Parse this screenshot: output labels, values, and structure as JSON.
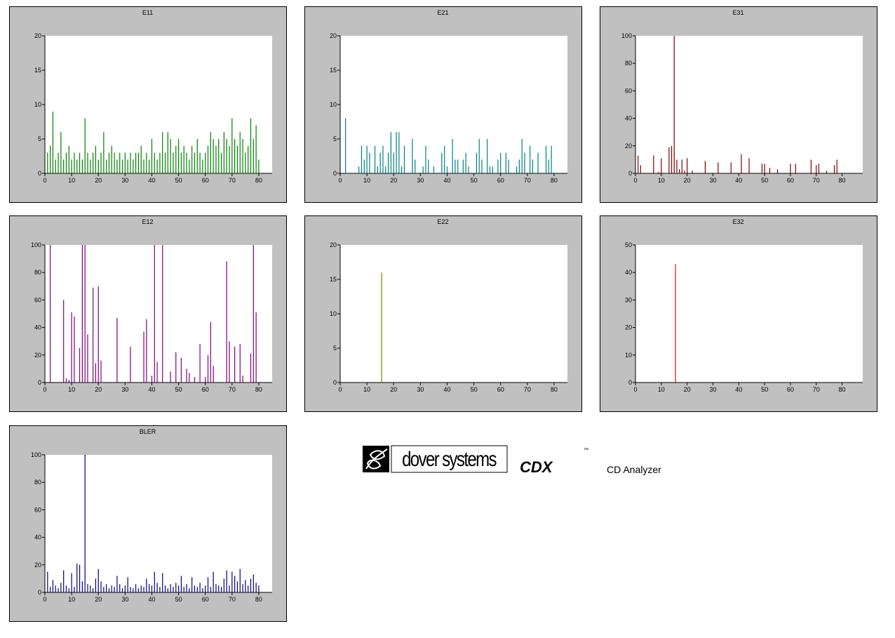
{
  "chart_data": [
    {
      "type": "bar",
      "title": "E11",
      "color": "#008000",
      "xlim": [
        0,
        85
      ],
      "ylim": [
        0,
        20
      ],
      "xticks": [
        0,
        10,
        20,
        30,
        40,
        50,
        60,
        70,
        80
      ],
      "yticks": [
        0,
        5,
        10,
        15,
        20
      ],
      "x": [
        1,
        2,
        3,
        4,
        5,
        6,
        7,
        8,
        9,
        10,
        11,
        12,
        13,
        14,
        15,
        16,
        17,
        18,
        19,
        20,
        21,
        22,
        23,
        24,
        25,
        26,
        27,
        28,
        29,
        30,
        31,
        32,
        33,
        34,
        35,
        36,
        37,
        38,
        39,
        40,
        41,
        42,
        43,
        44,
        45,
        46,
        47,
        48,
        49,
        50,
        51,
        52,
        53,
        54,
        55,
        56,
        57,
        58,
        59,
        60,
        61,
        62,
        63,
        64,
        65,
        66,
        67,
        68,
        69,
        70,
        71,
        72,
        73,
        74,
        75,
        76,
        77,
        78,
        79,
        80
      ],
      "values": [
        3,
        4,
        9,
        2,
        3,
        6,
        2,
        3,
        4,
        2,
        3,
        2,
        3,
        2,
        8,
        3,
        2,
        3,
        4,
        2,
        3,
        6,
        2,
        3,
        4,
        3,
        2,
        3,
        2,
        3,
        2,
        3,
        2,
        3,
        3,
        4,
        2,
        3,
        2,
        5,
        3,
        2,
        3,
        6,
        3,
        6,
        5,
        3,
        4,
        5,
        3,
        4,
        3,
        2,
        4,
        3,
        5,
        3,
        2,
        3,
        4,
        6,
        5,
        4,
        5,
        3,
        6,
        5,
        4,
        8,
        5,
        4,
        6,
        5,
        3,
        4,
        8,
        5,
        7,
        2
      ]
    },
    {
      "type": "bar",
      "title": "E21",
      "color": "#008080",
      "xlim": [
        0,
        85
      ],
      "ylim": [
        0,
        20
      ],
      "xticks": [
        0,
        10,
        20,
        30,
        40,
        50,
        60,
        70,
        80
      ],
      "yticks": [
        0,
        5,
        10,
        15,
        20
      ],
      "x": [
        2,
        7,
        8,
        9,
        10,
        11,
        13,
        14,
        15,
        16,
        17,
        18,
        19,
        20,
        21,
        22,
        23,
        24,
        27,
        28,
        31,
        32,
        33,
        35,
        38,
        39,
        40,
        42,
        43,
        44,
        46,
        47,
        48,
        51,
        52,
        53,
        55,
        56,
        57,
        59,
        60,
        62,
        63,
        66,
        67,
        68,
        69,
        71,
        72,
        74,
        77,
        78,
        79
      ],
      "values": [
        8,
        1,
        4,
        2,
        4,
        3,
        4,
        1,
        3,
        4,
        1,
        3,
        6,
        3,
        6,
        6,
        1,
        4,
        5,
        2,
        1,
        4,
        2,
        1,
        3,
        4,
        1,
        5,
        2,
        2,
        2,
        3,
        1,
        3,
        5,
        2,
        5,
        1,
        1,
        2,
        3,
        3,
        2,
        1,
        2,
        5,
        3,
        4,
        2,
        3,
        4,
        2,
        4
      ]
    },
    {
      "type": "bar",
      "title": "E31",
      "color": "#800000",
      "xlim": [
        0,
        88
      ],
      "ylim": [
        0,
        100
      ],
      "xticks": [
        0,
        10,
        20,
        30,
        40,
        50,
        60,
        70,
        80
      ],
      "yticks": [
        0,
        20,
        40,
        60,
        80,
        100
      ],
      "x": [
        1,
        2,
        7,
        9,
        10,
        13,
        14,
        15,
        16,
        17,
        18,
        19,
        20,
        22,
        27,
        32,
        37,
        41,
        44,
        49,
        50,
        52,
        55,
        60,
        62,
        68,
        70,
        71,
        74,
        77,
        78
      ],
      "values": [
        13,
        6,
        13,
        1,
        11,
        19,
        20,
        100,
        10,
        3,
        10,
        2,
        11,
        2,
        9,
        8,
        8,
        14,
        11,
        7,
        7,
        4,
        3,
        7,
        7,
        10,
        6,
        7,
        2,
        6,
        10
      ]
    },
    {
      "type": "bar",
      "title": "E12",
      "color": "#800080",
      "xlim": [
        0,
        85
      ],
      "ylim": [
        0,
        100
      ],
      "xticks": [
        0,
        10,
        20,
        30,
        40,
        50,
        60,
        70,
        80
      ],
      "yticks": [
        0,
        20,
        40,
        60,
        80,
        100
      ],
      "x": [
        2,
        7,
        8,
        9,
        10,
        11,
        13,
        14,
        15,
        16,
        18,
        19,
        20,
        21,
        27,
        32,
        37,
        38,
        40,
        41,
        42,
        44,
        47,
        49,
        51,
        53,
        54,
        56,
        58,
        60,
        61,
        62,
        63,
        68,
        69,
        71,
        73,
        74,
        77,
        78,
        79
      ],
      "values": [
        100,
        60,
        3,
        2,
        51,
        48,
        25,
        100,
        100,
        35,
        69,
        14,
        70,
        16,
        47,
        26,
        37,
        46,
        5,
        100,
        15,
        100,
        8,
        22,
        18,
        10,
        7,
        4,
        28,
        4,
        20,
        44,
        12,
        88,
        30,
        26,
        28,
        5,
        21,
        100,
        51
      ]
    },
    {
      "type": "bar",
      "title": "E22",
      "color": "#808000",
      "xlim": [
        0,
        85
      ],
      "ylim": [
        0,
        20
      ],
      "xticks": [
        0,
        10,
        20,
        30,
        40,
        50,
        60,
        70,
        80
      ],
      "yticks": [
        0,
        5,
        10,
        15,
        20
      ],
      "x": [
        15.5
      ],
      "values": [
        16
      ]
    },
    {
      "type": "bar",
      "title": "E32",
      "color": "#ff0000",
      "xlim": [
        0,
        88
      ],
      "ylim": [
        0,
        50
      ],
      "xticks": [
        0,
        10,
        20,
        30,
        40,
        50,
        60,
        70,
        80
      ],
      "yticks": [
        0,
        10,
        20,
        30,
        40,
        50
      ],
      "x": [
        15.5
      ],
      "values": [
        43
      ]
    },
    {
      "type": "bar",
      "title": "BLER",
      "color": "#000080",
      "xlim": [
        0,
        85
      ],
      "ylim": [
        0,
        100
      ],
      "xticks": [
        0,
        10,
        20,
        30,
        40,
        50,
        60,
        70,
        80
      ],
      "yticks": [
        0,
        20,
        40,
        60,
        80,
        100
      ],
      "x": [
        1,
        2,
        3,
        4,
        5,
        6,
        7,
        8,
        9,
        10,
        11,
        12,
        13,
        14,
        15,
        16,
        17,
        18,
        19,
        20,
        21,
        22,
        23,
        24,
        25,
        26,
        27,
        28,
        29,
        30,
        31,
        32,
        33,
        34,
        35,
        36,
        37,
        38,
        39,
        40,
        41,
        42,
        43,
        44,
        45,
        46,
        47,
        48,
        49,
        50,
        51,
        52,
        53,
        54,
        55,
        56,
        57,
        58,
        59,
        60,
        61,
        62,
        63,
        64,
        65,
        66,
        67,
        68,
        69,
        70,
        71,
        72,
        73,
        74,
        75,
        76,
        77,
        78,
        79,
        80
      ],
      "values": [
        15,
        4,
        9,
        5,
        3,
        7,
        16,
        5,
        3,
        14,
        4,
        21,
        20,
        8,
        100,
        6,
        5,
        3,
        10,
        17,
        8,
        4,
        6,
        3,
        5,
        4,
        12,
        6,
        3,
        5,
        11,
        4,
        3,
        6,
        3,
        5,
        4,
        10,
        6,
        5,
        15,
        7,
        4,
        14,
        5,
        3,
        6,
        4,
        7,
        5,
        12,
        4,
        6,
        3,
        11,
        5,
        4,
        7,
        3,
        5,
        11,
        4,
        15,
        6,
        5,
        4,
        10,
        16,
        5,
        15,
        12,
        8,
        17,
        6,
        9,
        5,
        10,
        13,
        7,
        5
      ]
    }
  ],
  "branding": {
    "company": "dover systems",
    "product": "CDX",
    "trademark": "™",
    "subtitle": "CD Analyzer"
  }
}
